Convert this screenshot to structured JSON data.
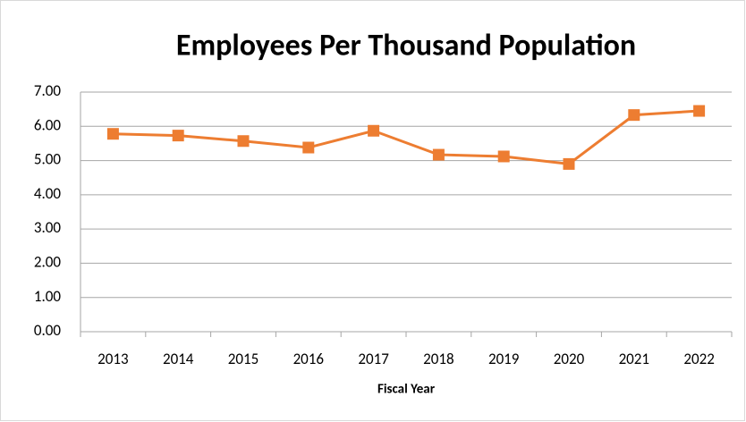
{
  "chart_data": {
    "type": "line",
    "title": "Employees Per Thousand Population",
    "x_label": "Fiscal Year",
    "categories": [
      "2013",
      "2014",
      "2015",
      "2016",
      "2017",
      "2018",
      "2019",
      "2020",
      "2021",
      "2022"
    ],
    "values": [
      5.78,
      5.73,
      5.57,
      5.38,
      5.87,
      5.17,
      5.12,
      4.9,
      6.33,
      6.45
    ],
    "color": "#ed7d31",
    "ylim": [
      0,
      7
    ],
    "yticks": [
      {
        "value": 0,
        "label": "0.00"
      },
      {
        "value": 1,
        "label": "1.00"
      },
      {
        "value": 2,
        "label": "2.00"
      },
      {
        "value": 3,
        "label": "3.00"
      },
      {
        "value": 4,
        "label": "4.00"
      },
      {
        "value": 5,
        "label": "5.00"
      },
      {
        "value": 6,
        "label": "6.00"
      },
      {
        "value": 7,
        "label": "7.00"
      }
    ],
    "grid": true
  }
}
